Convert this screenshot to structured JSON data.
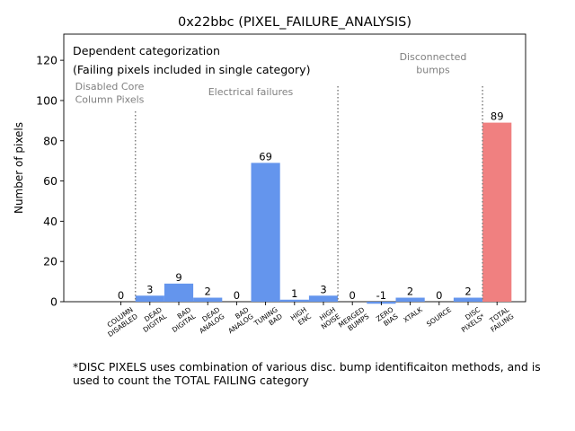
{
  "chart_data": {
    "type": "bar",
    "title": "0x22bbc (PIXEL_FAILURE_ANALYSIS)",
    "ylabel": "Number of pixels",
    "xlabel": "",
    "ylim": [
      0,
      133
    ],
    "yticks": [
      0,
      20,
      40,
      60,
      80,
      100,
      120
    ],
    "grid": false,
    "categories": [
      [
        "COLUMN",
        "DISABLED"
      ],
      [
        "DEAD",
        "DIGITAL"
      ],
      [
        "BAD",
        "DIGITAL"
      ],
      [
        "DEAD",
        "ANALOG"
      ],
      [
        "BAD",
        "ANALOG"
      ],
      [
        "TUNING",
        "BAD"
      ],
      [
        "HIGH",
        "ENC"
      ],
      [
        "HIGH",
        "NOISE"
      ],
      [
        "MERGED",
        "BUMPS"
      ],
      [
        "ZERO",
        "BIAS"
      ],
      [
        "XTALK"
      ],
      [
        "SOURCE"
      ],
      [
        "DISC",
        "PIXELS*"
      ],
      [
        "TOTAL",
        "FAILING"
      ]
    ],
    "values": [
      0,
      3,
      9,
      2,
      0,
      69,
      1,
      3,
      0,
      -1,
      2,
      0,
      2,
      89
    ],
    "value_labels": [
      "0",
      "3",
      "9",
      "2",
      "0",
      "69",
      "1",
      "3",
      "0",
      "-1",
      "2",
      "0",
      "2",
      "89"
    ],
    "colors": {
      "bar": "#6495ed",
      "total_bar": "#f08080",
      "divider": "#808080",
      "region_text": "#808080",
      "text": "#000000"
    },
    "dividers_after_category": [
      0,
      7,
      12
    ],
    "region_labels": [
      {
        "lines": [
          "Disabled Core",
          "Column Pixels"
        ]
      },
      {
        "lines": [
          "Electrical failures"
        ]
      },
      {
        "lines": [
          "Disconnected",
          "bumps"
        ]
      }
    ],
    "annotation": {
      "lines": [
        "Dependent categorization",
        "(Failing pixels included in single category)"
      ]
    }
  },
  "footnote": "*DISC PIXELS uses combination of various disc. bump identificaiton methods, and is\nused to count the TOTAL FAILING category"
}
